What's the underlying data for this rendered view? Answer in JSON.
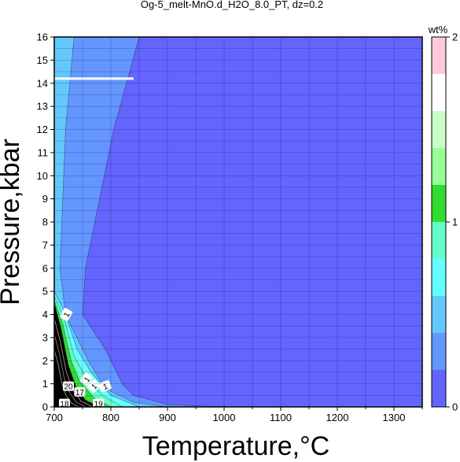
{
  "chart_data": {
    "type": "contour",
    "title": "Og-5_melt-MnO.d_H2O_8.0_PT, dz=0.2",
    "xlabel": "Temperature,°C",
    "ylabel": "Pressure,kbar",
    "xlim": [
      700,
      1350
    ],
    "ylim": [
      0,
      16
    ],
    "x_ticks": [
      "700",
      "800",
      "900",
      "1000",
      "1100",
      "1200",
      "1300"
    ],
    "y_ticks": [
      "0",
      "1",
      "2",
      "3",
      "4",
      "5",
      "6",
      "7",
      "8",
      "9",
      "10",
      "11",
      "12",
      "13",
      "14",
      "15",
      "16"
    ],
    "grid": true,
    "colorbar": {
      "label": "wt%",
      "range": [
        0,
        2
      ],
      "step": 0.2,
      "ticks": [
        "0",
        "1",
        "2"
      ],
      "colors": [
        "#6464ff",
        "#6496ff",
        "#64c8ff",
        "#64ffff",
        "#64ffc8",
        "#32dc32",
        "#96ff96",
        "#c8ffc8",
        "#ffffff",
        "#ffc8dc"
      ]
    },
    "bands": [
      {
        "range": [
          0.2,
          0.4
        ],
        "color": "#6496ff",
        "boundary": [
          [
            700,
            16
          ],
          [
            850,
            16
          ],
          [
            805,
            12
          ],
          [
            755,
            6
          ],
          [
            750,
            4
          ],
          [
            790,
            2.5
          ],
          [
            820,
            1
          ],
          [
            840,
            0.5
          ],
          [
            900,
            0.1
          ],
          [
            1000,
            0
          ]
        ]
      },
      {
        "range": [
          0.4,
          0.6
        ],
        "color": "#64c8ff",
        "boundary": [
          [
            700,
            16
          ],
          [
            735,
            16
          ],
          [
            720,
            12
          ],
          [
            710,
            6
          ],
          [
            720,
            4
          ],
          [
            760,
            2
          ],
          [
            790,
            0.8
          ],
          [
            840,
            0.2
          ],
          [
            900,
            0
          ]
        ]
      },
      {
        "range": [
          0.6,
          0.8
        ],
        "color": "#64ffff",
        "boundary": [
          [
            700,
            5
          ],
          [
            720,
            4
          ],
          [
            740,
            2.5
          ],
          [
            765,
            1.5
          ],
          [
            800,
            0.5
          ],
          [
            850,
            0
          ]
        ]
      },
      {
        "range": [
          0.8,
          1.0
        ],
        "color": "#64ffc8",
        "boundary": [
          [
            700,
            4.8
          ],
          [
            718,
            3.8
          ],
          [
            735,
            2.2
          ],
          [
            755,
            1.3
          ],
          [
            785,
            0.5
          ],
          [
            820,
            0
          ]
        ]
      },
      {
        "range": [
          1.0,
          1.2
        ],
        "color": "#32dc32",
        "boundary": [
          [
            700,
            4.6
          ],
          [
            715,
            3.6
          ],
          [
            730,
            2
          ],
          [
            745,
            1.1
          ],
          [
            770,
            0.4
          ],
          [
            800,
            0
          ]
        ]
      },
      {
        "range": [
          1.2,
          2.0
        ],
        "color": "#000000",
        "boundary": [
          [
            700,
            4.5
          ],
          [
            712,
            3.4
          ],
          [
            725,
            1.8
          ],
          [
            738,
            0.9
          ],
          [
            755,
            0.3
          ],
          [
            780,
            0
          ]
        ]
      }
    ],
    "contour_labels": [
      "1",
      "1",
      "1",
      "1",
      "17",
      "20",
      "18",
      "19"
    ],
    "reference_line": {
      "x": [
        700,
        840
      ],
      "y": 14.2,
      "color": "#ffffff"
    }
  }
}
